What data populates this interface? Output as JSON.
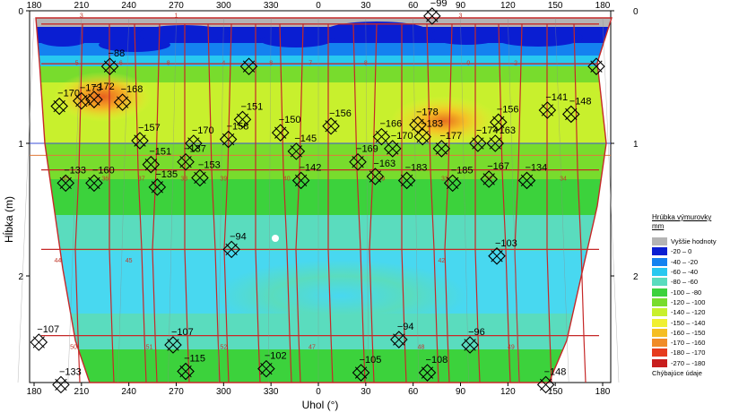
{
  "chart_data": {
    "type": "heatmap",
    "xlabel": "Uhol (°)",
    "ylabel": "Hĺbka (m)",
    "x_ticks_top": [
      "180",
      "210",
      "240",
      "270",
      "300",
      "330",
      "0",
      "30",
      "60",
      "90",
      "120",
      "150",
      "180"
    ],
    "x_ticks_bottom": [
      "180",
      "210",
      "240",
      "270",
      "300",
      "330",
      "0",
      "30",
      "60",
      "90",
      "120",
      "150",
      "180"
    ],
    "y_ticks": [
      "0",
      "1",
      "2"
    ],
    "y_ticks_right": [
      "0",
      "1",
      "2"
    ],
    "ylim": [
      0,
      2.6
    ],
    "reference_lines": [
      {
        "depth": 1.0,
        "color": "#3b4fd8"
      },
      {
        "depth": 1.09,
        "color": "#e07a3a"
      }
    ],
    "legend": {
      "title": "Hrúbka výmurovky",
      "unit": "mm",
      "items": [
        {
          "label": "Vyššie hodnoty",
          "color": "#b4b4b4"
        },
        {
          "label": "-20 – 0",
          "color": "#0a1ed2"
        },
        {
          "label": "-40 – -20",
          "color": "#1482f0"
        },
        {
          "label": "-60 – -40",
          "color": "#28c8f0"
        },
        {
          "label": "-80 – -60",
          "color": "#5adcbe"
        },
        {
          "label": "-100 – -80",
          "color": "#3cd23c"
        },
        {
          "label": "-120 – -100",
          "color": "#78dc2d"
        },
        {
          "label": "-140 – -120",
          "color": "#c8f02d"
        },
        {
          "label": "-150 – -140",
          "color": "#f0f032"
        },
        {
          "label": "-160 – -150",
          "color": "#f5be23"
        },
        {
          "label": "-170 – -160",
          "color": "#f08c28"
        },
        {
          "label": "-180 – -170",
          "color": "#e63c1e"
        },
        {
          "label": "-270 – -180",
          "color": "#c81e1e"
        },
        {
          "label": "Chýbajúce údaje",
          "color": "#f0a0f0"
        }
      ]
    },
    "section_numbers": [
      {
        "label": "3",
        "angle": 210,
        "depth": 0.05
      },
      {
        "label": "1",
        "angle": 270,
        "depth": 0.05
      },
      {
        "label": "3",
        "angle": 90,
        "depth": 0.05
      },
      {
        "label": "5",
        "angle": 207,
        "depth": 0.41
      },
      {
        "label": "6",
        "angle": 235,
        "depth": 0.41
      },
      {
        "label": "8",
        "angle": 265,
        "depth": 0.41
      },
      {
        "label": "4",
        "angle": 300,
        "depth": 0.41
      },
      {
        "label": "8",
        "angle": 330,
        "depth": 0.41
      },
      {
        "label": "7",
        "angle": 355,
        "depth": 0.41
      },
      {
        "label": "8",
        "angle": 30,
        "depth": 0.41
      },
      {
        "label": "0",
        "angle": 95,
        "depth": 0.41
      },
      {
        "label": "2",
        "angle": 125,
        "depth": 0.41
      },
      {
        "label": "35",
        "angle": 200,
        "depth": 1.28
      },
      {
        "label": "36",
        "angle": 225,
        "depth": 1.28
      },
      {
        "label": "37",
        "angle": 248,
        "depth": 1.28
      },
      {
        "label": "38",
        "angle": 275,
        "depth": 1.28
      },
      {
        "label": "39",
        "angle": 300,
        "depth": 1.28
      },
      {
        "label": "40",
        "angle": 340,
        "depth": 1.28
      },
      {
        "label": "29",
        "angle": 40,
        "depth": 1.28
      },
      {
        "label": "31",
        "angle": 80,
        "depth": 1.28
      },
      {
        "label": "32",
        "angle": 108,
        "depth": 1.28
      },
      {
        "label": "34",
        "angle": 155,
        "depth": 1.28
      },
      {
        "label": "44",
        "angle": 195,
        "depth": 1.9
      },
      {
        "label": "45",
        "angle": 240,
        "depth": 1.9
      },
      {
        "label": "42",
        "angle": 78,
        "depth": 1.9
      },
      {
        "label": "50",
        "angle": 205,
        "depth": 2.55
      },
      {
        "label": "51",
        "angle": 253,
        "depth": 2.55
      },
      {
        "label": "52",
        "angle": 300,
        "depth": 2.55
      },
      {
        "label": "47",
        "angle": 356,
        "depth": 2.55
      },
      {
        "label": "48",
        "angle": 65,
        "depth": 2.55
      },
      {
        "label": "49",
        "angle": 122,
        "depth": 2.55
      }
    ],
    "measurements": [
      {
        "label": "−99",
        "angle": 72,
        "depth": 0.04
      },
      {
        "label": "−88",
        "angle": 228,
        "depth": 0.42
      },
      {
        "label": "",
        "angle": 316,
        "depth": 0.42
      },
      {
        "label": "",
        "angle": 176,
        "depth": 0.42
      },
      {
        "label": "−170",
        "angle": 196,
        "depth": 0.72
      },
      {
        "label": "−173",
        "angle": 210,
        "depth": 0.68
      },
      {
        "label": "−172",
        "angle": 218,
        "depth": 0.67
      },
      {
        "label": "−168",
        "angle": 236,
        "depth": 0.69
      },
      {
        "label": "−151",
        "angle": 312,
        "depth": 0.82
      },
      {
        "label": "−150",
        "angle": 336,
        "depth": 0.92
      },
      {
        "label": "−156",
        "angle": 8,
        "depth": 0.87
      },
      {
        "label": "−178",
        "angle": 63,
        "depth": 0.86
      },
      {
        "label": "−156",
        "angle": 114,
        "depth": 0.84
      },
      {
        "label": "−141",
        "angle": 145,
        "depth": 0.75
      },
      {
        "label": "−148",
        "angle": 160,
        "depth": 0.78
      },
      {
        "label": "−157",
        "angle": 247,
        "depth": 0.98
      },
      {
        "label": "−170",
        "angle": 281,
        "depth": 1.0
      },
      {
        "label": "−158",
        "angle": 303,
        "depth": 0.97
      },
      {
        "label": "−145",
        "angle": 346,
        "depth": 1.06
      },
      {
        "label": "−166",
        "angle": 40,
        "depth": 0.95
      },
      {
        "label": "−170",
        "angle": 47,
        "depth": 1.04
      },
      {
        "label": "−183",
        "angle": 66,
        "depth": 0.95
      },
      {
        "label": "−177",
        "angle": 78,
        "depth": 1.04
      },
      {
        "label": "−174",
        "angle": 101,
        "depth": 1.0
      },
      {
        "label": "−163",
        "angle": 112,
        "depth": 1.0
      },
      {
        "label": "−151",
        "angle": 254,
        "depth": 1.16
      },
      {
        "label": "−137",
        "angle": 276,
        "depth": 1.14
      },
      {
        "label": "−169",
        "angle": 25,
        "depth": 1.14
      },
      {
        "label": "−163",
        "angle": 36,
        "depth": 1.25
      },
      {
        "label": "−133",
        "angle": 200,
        "depth": 1.3
      },
      {
        "label": "−160",
        "angle": 218,
        "depth": 1.3
      },
      {
        "label": "−135",
        "angle": 258,
        "depth": 1.33
      },
      {
        "label": "−153",
        "angle": 285,
        "depth": 1.26
      },
      {
        "label": "−142",
        "angle": 349,
        "depth": 1.28
      },
      {
        "label": "−183",
        "angle": 56,
        "depth": 1.28
      },
      {
        "label": "−185",
        "angle": 85,
        "depth": 1.3
      },
      {
        "label": "−167",
        "angle": 108,
        "depth": 1.27
      },
      {
        "label": "−134",
        "angle": 132,
        "depth": 1.28
      },
      {
        "label": "−94",
        "angle": 305,
        "depth": 1.8
      },
      {
        "label": "−103",
        "angle": 113,
        "depth": 1.85
      },
      {
        "label": "−107",
        "angle": 183,
        "depth": 2.5
      },
      {
        "label": "−107",
        "angle": 268,
        "depth": 2.52
      },
      {
        "label": "−94",
        "angle": 51,
        "depth": 2.48
      },
      {
        "label": "−96",
        "angle": 96,
        "depth": 2.52
      },
      {
        "label": "−115",
        "angle": 276,
        "depth": 2.72
      },
      {
        "label": "−102",
        "angle": 327,
        "depth": 2.7
      },
      {
        "label": "−105",
        "angle": 27,
        "depth": 2.73
      },
      {
        "label": "−108",
        "angle": 69,
        "depth": 2.73
      },
      {
        "label": "−133",
        "angle": 197,
        "depth": 2.82
      },
      {
        "label": "−148",
        "angle": 144,
        "depth": 2.82
      }
    ]
  }
}
